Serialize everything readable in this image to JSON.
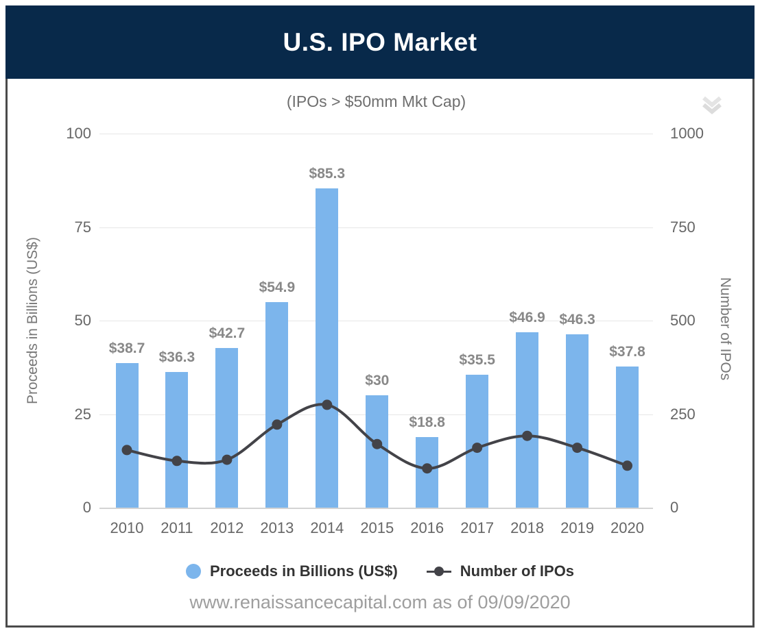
{
  "header": {
    "title": "U.S. IPO Market"
  },
  "subtitle": "(IPOs > $50mm Mkt Cap)",
  "footer": "www.renaissancecapital.com as of 09/09/2020",
  "icons": {
    "collapse": "chevron-double-down"
  },
  "colors": {
    "header_bg": "#08294a",
    "bar": "#7cb5ec",
    "line": "#434348",
    "grid": "#e6e6e6",
    "axis_line": "#d3d3d3",
    "tick_label": "#666666",
    "axis_title": "#777777",
    "data_label": "#888888",
    "legend_text": "#333333",
    "footer_text": "#9e9e9e",
    "frame_border": "#4a4a4a",
    "collapse_icon": "#e0e0e0"
  },
  "chart_data": {
    "type": "combo-bar-line",
    "categories": [
      "2010",
      "2011",
      "2012",
      "2013",
      "2014",
      "2015",
      "2016",
      "2017",
      "2018",
      "2019",
      "2020"
    ],
    "series": [
      {
        "name": "Proceeds in Billions (US$)",
        "type": "bar",
        "axis": "left",
        "values": [
          38.7,
          36.3,
          42.7,
          54.9,
          85.3,
          30,
          18.8,
          35.5,
          46.9,
          46.3,
          37.8
        ],
        "data_labels": [
          "$38.7",
          "$36.3",
          "$42.7",
          "$54.9",
          "$85.3",
          "$30",
          "$18.8",
          "$35.5",
          "$46.9",
          "$46.3",
          "$37.8"
        ]
      },
      {
        "name": "Number of IPOs",
        "type": "line",
        "axis": "right",
        "values": [
          154,
          125,
          128,
          222,
          275,
          170,
          105,
          160,
          192,
          160,
          112
        ],
        "values_note": "estimated from plotted markers; no data labels shown on line"
      }
    ],
    "axes": {
      "left": {
        "title": "Proceeds in Billions (US$)",
        "range": [
          0,
          100
        ],
        "ticks": [
          0,
          25,
          50,
          75,
          100
        ]
      },
      "right": {
        "title": "Number of IPOs",
        "range": [
          0,
          1000
        ],
        "ticks": [
          0,
          250,
          500,
          750,
          1000
        ]
      }
    },
    "grid": "horizontal",
    "legend_position": "bottom"
  }
}
